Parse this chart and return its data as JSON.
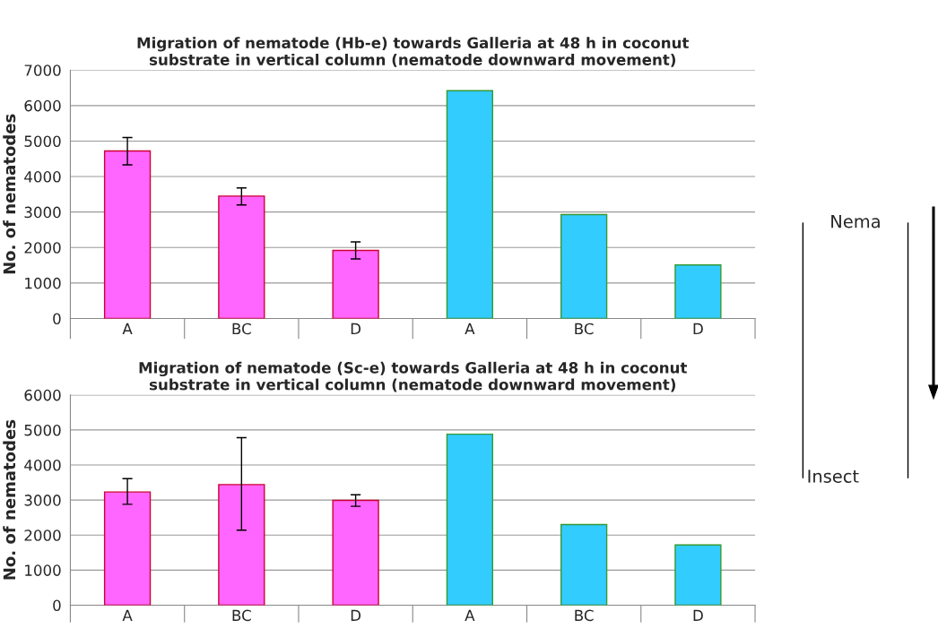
{
  "chart_data": [
    {
      "type": "bar",
      "title": "Migration of nematode (Hb-e) towards Galleria at 48 h in coconut\nsubstrate in vertical column (nematode downward movement)",
      "ylabel": "No. of nematodes",
      "categories": [
        "A",
        "BC",
        "D",
        "A",
        "BC",
        "D"
      ],
      "values": [
        4720,
        3450,
        1920,
        6420,
        2930,
        1510
      ],
      "errors": [
        [
          4330,
          5100
        ],
        [
          3200,
          3680
        ],
        [
          1680,
          2160
        ],
        null,
        null,
        null
      ],
      "colors": [
        "#ff66ff",
        "#ff66ff",
        "#ff66ff",
        "#33ccff",
        "#33ccff",
        "#33ccff"
      ],
      "ylim": [
        0,
        7000
      ],
      "yticks": [
        0,
        1000,
        2000,
        3000,
        4000,
        5000,
        6000,
        7000
      ],
      "grid": "y"
    },
    {
      "type": "bar",
      "title": "Migration of nematode (Sc-e) towards Galleria at 48 h in coconut\nsubstrate in vertical column (nematode downward movement)",
      "ylabel": "No. of nematodes",
      "categories": [
        "A",
        "BC",
        "D",
        "A",
        "BC",
        "D"
      ],
      "values": [
        3230,
        3440,
        2990,
        4880,
        2300,
        1720
      ],
      "errors": [
        [
          2880,
          3610
        ],
        [
          2140,
          4780
        ],
        [
          2820,
          3150
        ],
        null,
        null,
        null
      ],
      "colors": [
        "#ff66ff",
        "#ff66ff",
        "#ff66ff",
        "#33ccff",
        "#33ccff",
        "#33ccff"
      ],
      "ylim": [
        0,
        6000
      ],
      "yticks": [
        0,
        1000,
        2000,
        3000,
        4000,
        5000,
        6000
      ],
      "grid": "y"
    },
    {
      "type": "other",
      "annotations": [
        "Nema",
        "Insect"
      ]
    }
  ]
}
